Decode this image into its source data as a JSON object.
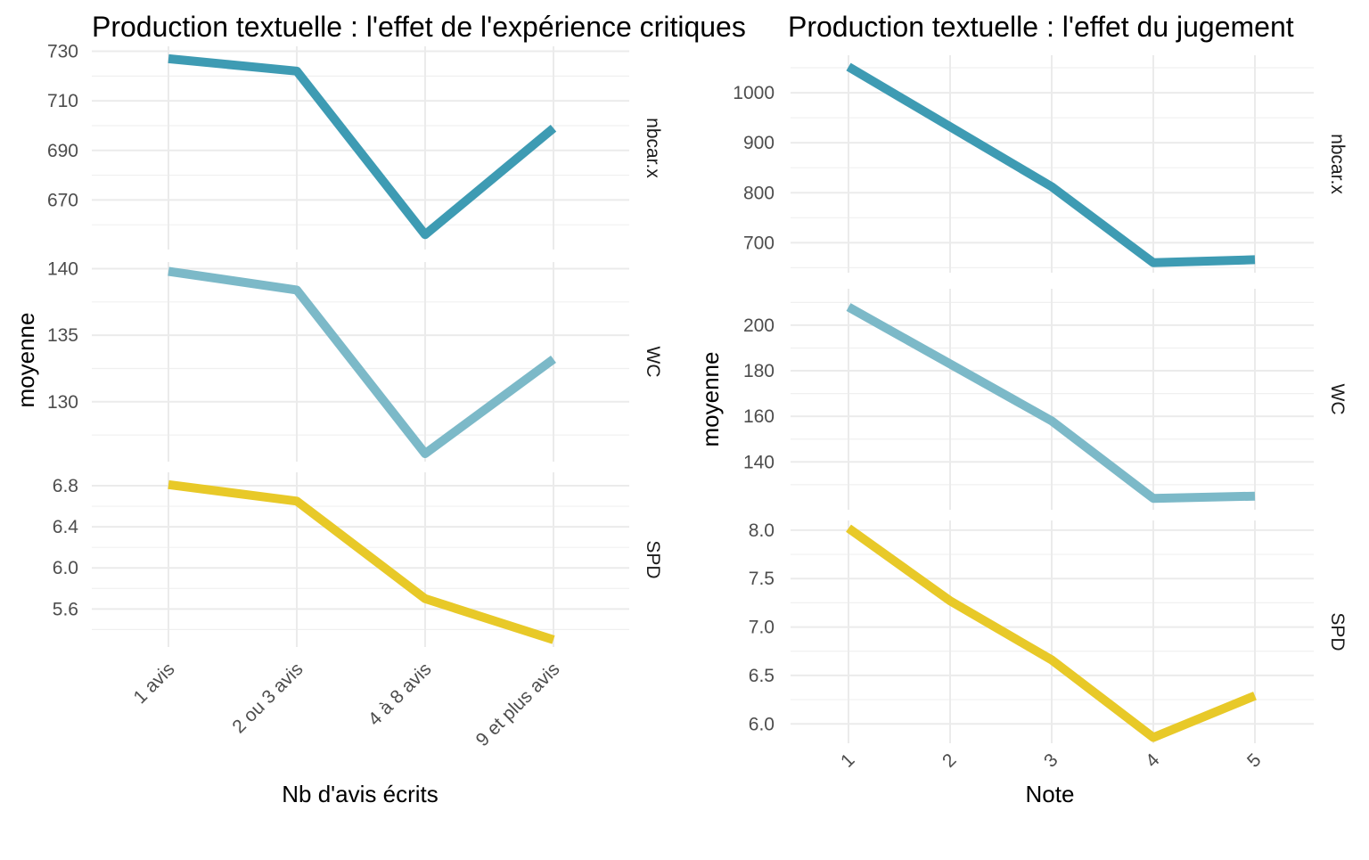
{
  "chart_data": [
    {
      "type": "line",
      "title": "Production textuelle : l'effet de l'expérience critiques",
      "xlabel": "Nb d'avis écrits",
      "ylabel": "moyenne",
      "categories": [
        "1 avis",
        "2 ou 3 avis",
        "4 à 8 avis",
        "9 et plus avis"
      ],
      "facets": [
        {
          "label": "nbcar.x",
          "color": "#3e9bb3",
          "values": [
            727,
            722,
            656,
            699
          ],
          "ylim": [
            650,
            732
          ],
          "yticks": [
            670,
            690,
            710,
            730
          ],
          "ytick_labels": [
            "670",
            "690",
            "710",
            "730"
          ]
        },
        {
          "label": "WC",
          "color": "#7cb9c8",
          "values": [
            139.8,
            138.4,
            126.1,
            133.2
          ],
          "ylim": [
            125.5,
            140.5
          ],
          "yticks": [
            130,
            135,
            140
          ],
          "ytick_labels": [
            "130",
            "135",
            "140"
          ]
        },
        {
          "label": "SPD",
          "color": "#e8c928",
          "values": [
            6.81,
            6.65,
            5.7,
            5.3
          ],
          "ylim": [
            5.23,
            6.93
          ],
          "yticks": [
            5.6,
            6.0,
            6.4,
            6.8
          ],
          "ytick_labels": [
            "5.6",
            "6.0",
            "6.4",
            "6.8"
          ]
        }
      ]
    },
    {
      "type": "line",
      "title": "Production textuelle : l'effet du jugement",
      "xlabel": "Note",
      "ylabel": "moyenne",
      "categories": [
        "1",
        "2",
        "3",
        "4",
        "5"
      ],
      "facets": [
        {
          "label": "nbcar.x",
          "color": "#3e9bb3",
          "values": [
            1052,
            932,
            812,
            660,
            666
          ],
          "ylim": [
            640,
            1075
          ],
          "yticks": [
            700,
            800,
            900,
            1000
          ],
          "ytick_labels": [
            "700",
            "800",
            "900",
            "1000"
          ]
        },
        {
          "label": "WC",
          "color": "#7cb9c8",
          "values": [
            208,
            183,
            158,
            124,
            125
          ],
          "ylim": [
            119,
            216
          ],
          "yticks": [
            140,
            160,
            180,
            200
          ],
          "ytick_labels": [
            "140",
            "160",
            "180",
            "200"
          ]
        },
        {
          "label": "SPD",
          "color": "#e8c928",
          "values": [
            8.02,
            7.27,
            6.66,
            5.86,
            6.29
          ],
          "ylim": [
            5.8,
            8.1
          ],
          "yticks": [
            6.0,
            6.5,
            7.0,
            7.5,
            8.0
          ],
          "ytick_labels": [
            "6.0",
            "6.5",
            "7.0",
            "7.5",
            "8.0"
          ]
        }
      ]
    }
  ]
}
